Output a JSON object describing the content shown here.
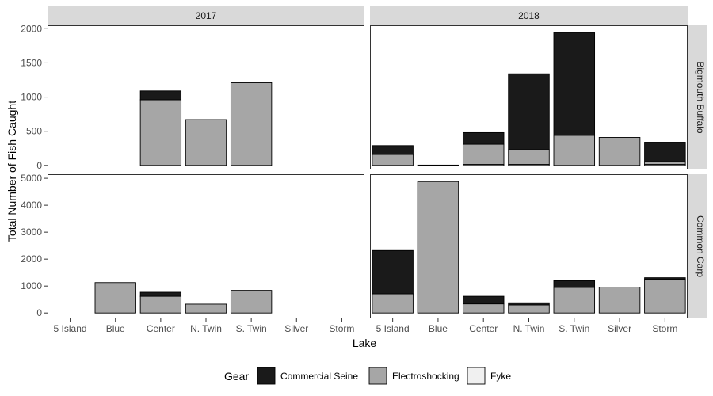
{
  "chart_data": {
    "type": "bar",
    "stacked": true,
    "categories": [
      "5 Island",
      "Blue",
      "Center",
      "N. Twin",
      "S. Twin",
      "Silver",
      "Storm"
    ],
    "xlabel": "Lake",
    "ylabel": "Total Number of Fish Caught",
    "columns": [
      "2017",
      "2018"
    ],
    "rows": [
      {
        "label": "Bigmouth Buffalo",
        "ylim": [
          -60,
          2050
        ],
        "ticks": [
          0,
          500,
          1000,
          1500,
          2000
        ]
      },
      {
        "label": "Common Carp",
        "ylim": [
          -200,
          5150
        ],
        "ticks": [
          0,
          1000,
          2000,
          3000,
          4000,
          5000
        ]
      }
    ],
    "legend": {
      "title": "Gear",
      "position": "bottom",
      "items": [
        {
          "name": "Commercial Seine",
          "color": "#1a1a1a"
        },
        {
          "name": "Electroshocking",
          "color": "#a6a6a6"
        },
        {
          "name": "Fyke",
          "color": "#f0f0f0"
        }
      ]
    },
    "panels": [
      {
        "row": "Bigmouth Buffalo",
        "col": "2017",
        "bars": [
          {
            "category": "Center",
            "Fyke": 0,
            "Electroshocking": 960,
            "Commercial Seine": 130
          },
          {
            "category": "N. Twin",
            "Fyke": 0,
            "Electroshocking": 670,
            "Commercial Seine": 0
          },
          {
            "category": "S. Twin",
            "Fyke": 0,
            "Electroshocking": 1210,
            "Commercial Seine": 0
          }
        ]
      },
      {
        "row": "Bigmouth Buffalo",
        "col": "2018",
        "bars": [
          {
            "category": "5 Island",
            "Fyke": 0,
            "Electroshocking": 160,
            "Commercial Seine": 130
          },
          {
            "category": "Blue",
            "Fyke": 0,
            "Electroshocking": 5,
            "Commercial Seine": 0
          },
          {
            "category": "Center",
            "Fyke": 15,
            "Electroshocking": 295,
            "Commercial Seine": 170
          },
          {
            "category": "N. Twin",
            "Fyke": 15,
            "Electroshocking": 215,
            "Commercial Seine": 1110
          },
          {
            "category": "S. Twin",
            "Fyke": 0,
            "Electroshocking": 440,
            "Commercial Seine": 1500
          },
          {
            "category": "Silver",
            "Fyke": 0,
            "Electroshocking": 410,
            "Commercial Seine": 0
          },
          {
            "category": "Storm",
            "Fyke": 15,
            "Electroshocking": 40,
            "Commercial Seine": 285
          }
        ]
      },
      {
        "row": "Common Carp",
        "col": "2017",
        "bars": [
          {
            "category": "Blue",
            "Fyke": 0,
            "Electroshocking": 1130,
            "Commercial Seine": 0
          },
          {
            "category": "Center",
            "Fyke": 0,
            "Electroshocking": 620,
            "Commercial Seine": 150
          },
          {
            "category": "N. Twin",
            "Fyke": 0,
            "Electroshocking": 330,
            "Commercial Seine": 0
          },
          {
            "category": "S. Twin",
            "Fyke": 0,
            "Electroshocking": 840,
            "Commercial Seine": 0
          }
        ]
      },
      {
        "row": "Common Carp",
        "col": "2018",
        "bars": [
          {
            "category": "5 Island",
            "Fyke": 0,
            "Electroshocking": 710,
            "Commercial Seine": 1610
          },
          {
            "category": "Blue",
            "Fyke": 0,
            "Electroshocking": 4880,
            "Commercial Seine": 0
          },
          {
            "category": "Center",
            "Fyke": 0,
            "Electroshocking": 340,
            "Commercial Seine": 280
          },
          {
            "category": "N. Twin",
            "Fyke": 0,
            "Electroshocking": 300,
            "Commercial Seine": 80
          },
          {
            "category": "S. Twin",
            "Fyke": 0,
            "Electroshocking": 950,
            "Commercial Seine": 250
          },
          {
            "category": "Silver",
            "Fyke": 0,
            "Electroshocking": 960,
            "Commercial Seine": 0
          },
          {
            "category": "Storm",
            "Fyke": 0,
            "Electroshocking": 1250,
            "Commercial Seine": 60
          }
        ]
      }
    ]
  }
}
